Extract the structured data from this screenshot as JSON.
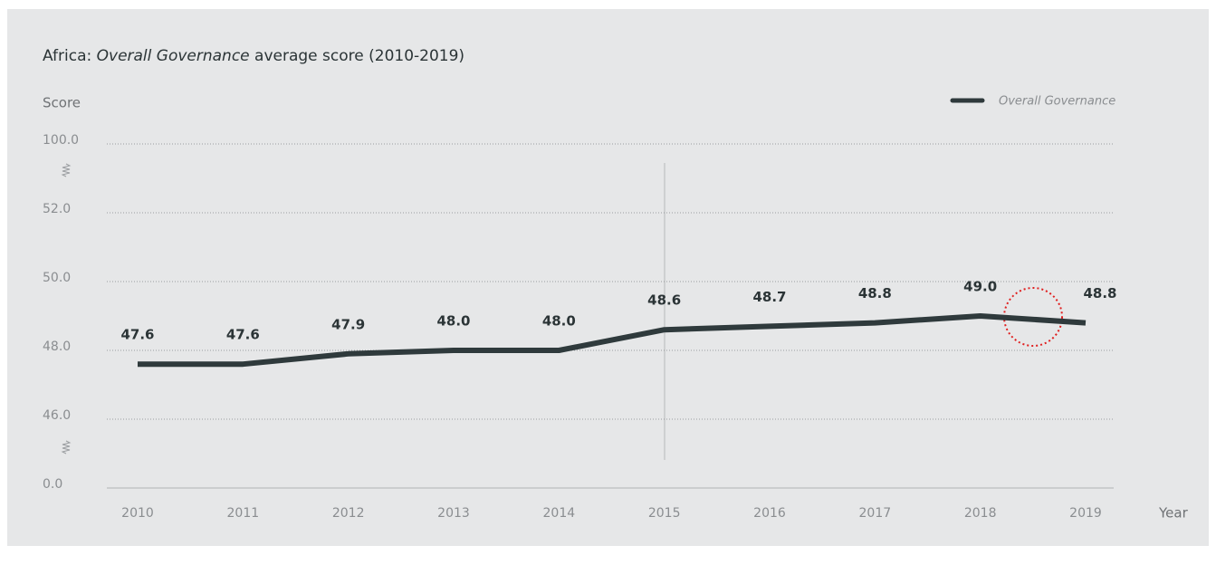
{
  "chart_data": {
    "type": "line",
    "title": {
      "prefix": "Africa: ",
      "emphasis": "Overall Governance",
      "suffix": " average score (2010-2019)"
    },
    "y_label": "Score",
    "x_label": "Year",
    "categories": [
      "2010",
      "2011",
      "2012",
      "2013",
      "2014",
      "2015",
      "2016",
      "2017",
      "2018",
      "2019"
    ],
    "series": [
      {
        "name": "Overall Governance",
        "color": "#2f3a3c",
        "values": [
          47.6,
          47.6,
          47.9,
          48.0,
          48.0,
          48.6,
          48.7,
          48.8,
          49.0,
          48.8
        ],
        "value_labels": [
          "47.6",
          "47.6",
          "47.9",
          "48.0",
          "48.0",
          "48.6",
          "48.7",
          "48.8",
          "49.0",
          "48.8"
        ]
      }
    ],
    "ylim": [
      0,
      100
    ],
    "yticks": [
      {
        "value": 100,
        "label": "100.0"
      },
      {
        "value": 52,
        "label": "52.0"
      },
      {
        "value": 50,
        "label": "50.0"
      },
      {
        "value": 48,
        "label": "48.0"
      },
      {
        "value": 46,
        "label": "46.0"
      },
      {
        "value": 0,
        "label": "0.0"
      }
    ],
    "broken_axis": true,
    "grid": true,
    "legend": "top-right"
  }
}
